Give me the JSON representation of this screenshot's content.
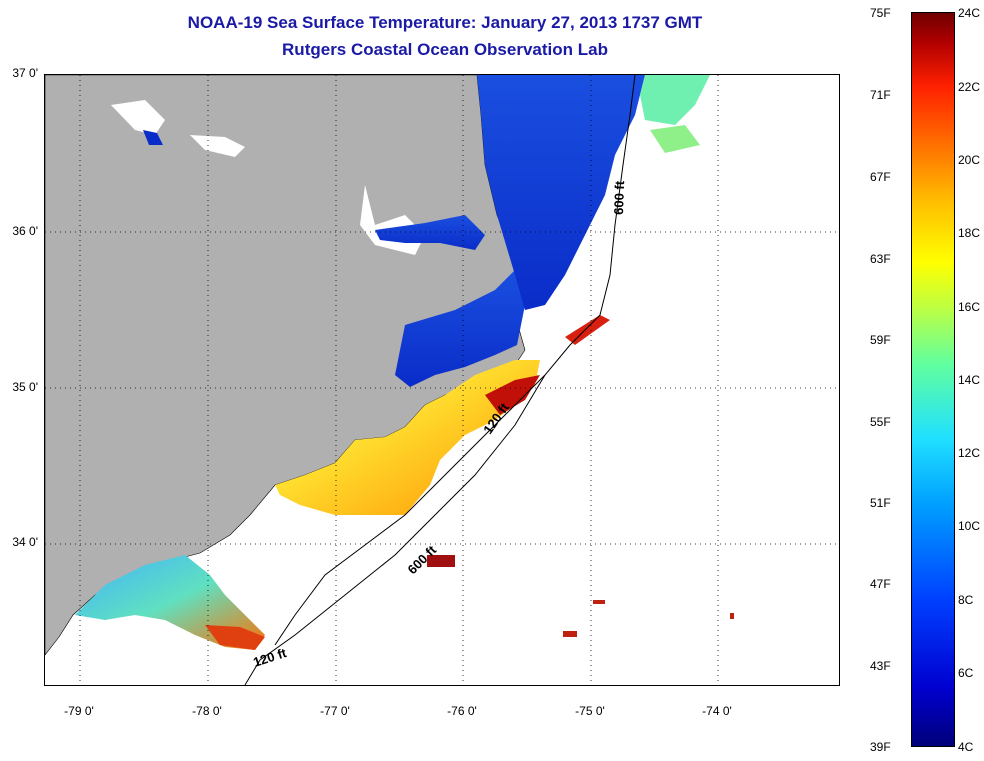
{
  "header": {
    "title": "NOAA-19 Sea Surface Temperature:  January 27, 2013 1737 GMT",
    "subtitle": "Rutgers Coastal Ocean Observation Lab"
  },
  "axes": {
    "lat_labels": [
      "37 0'",
      "36 0'",
      "35 0'",
      "34 0'"
    ],
    "lon_labels": [
      "-79 0'",
      "-78 0'",
      "-77 0'",
      "-76 0'",
      "-75 0'",
      "-74 0'"
    ]
  },
  "map": {
    "contour_labels": [
      "600 ft",
      "120 ft",
      "600 ft",
      "120 ft"
    ],
    "colors": {
      "land": "#b0b0b0",
      "no_data": "#ffffff",
      "coast": "#000000"
    }
  },
  "colorbar": {
    "fahrenheit": [
      "75F",
      "71F",
      "67F",
      "63F",
      "59F",
      "55F",
      "51F",
      "47F",
      "43F",
      "39F"
    ],
    "celsius": [
      "24C",
      "22C",
      "20C",
      "18C",
      "16C",
      "14C",
      "12C",
      "10C",
      "8C",
      "6C",
      "4C"
    ]
  }
}
